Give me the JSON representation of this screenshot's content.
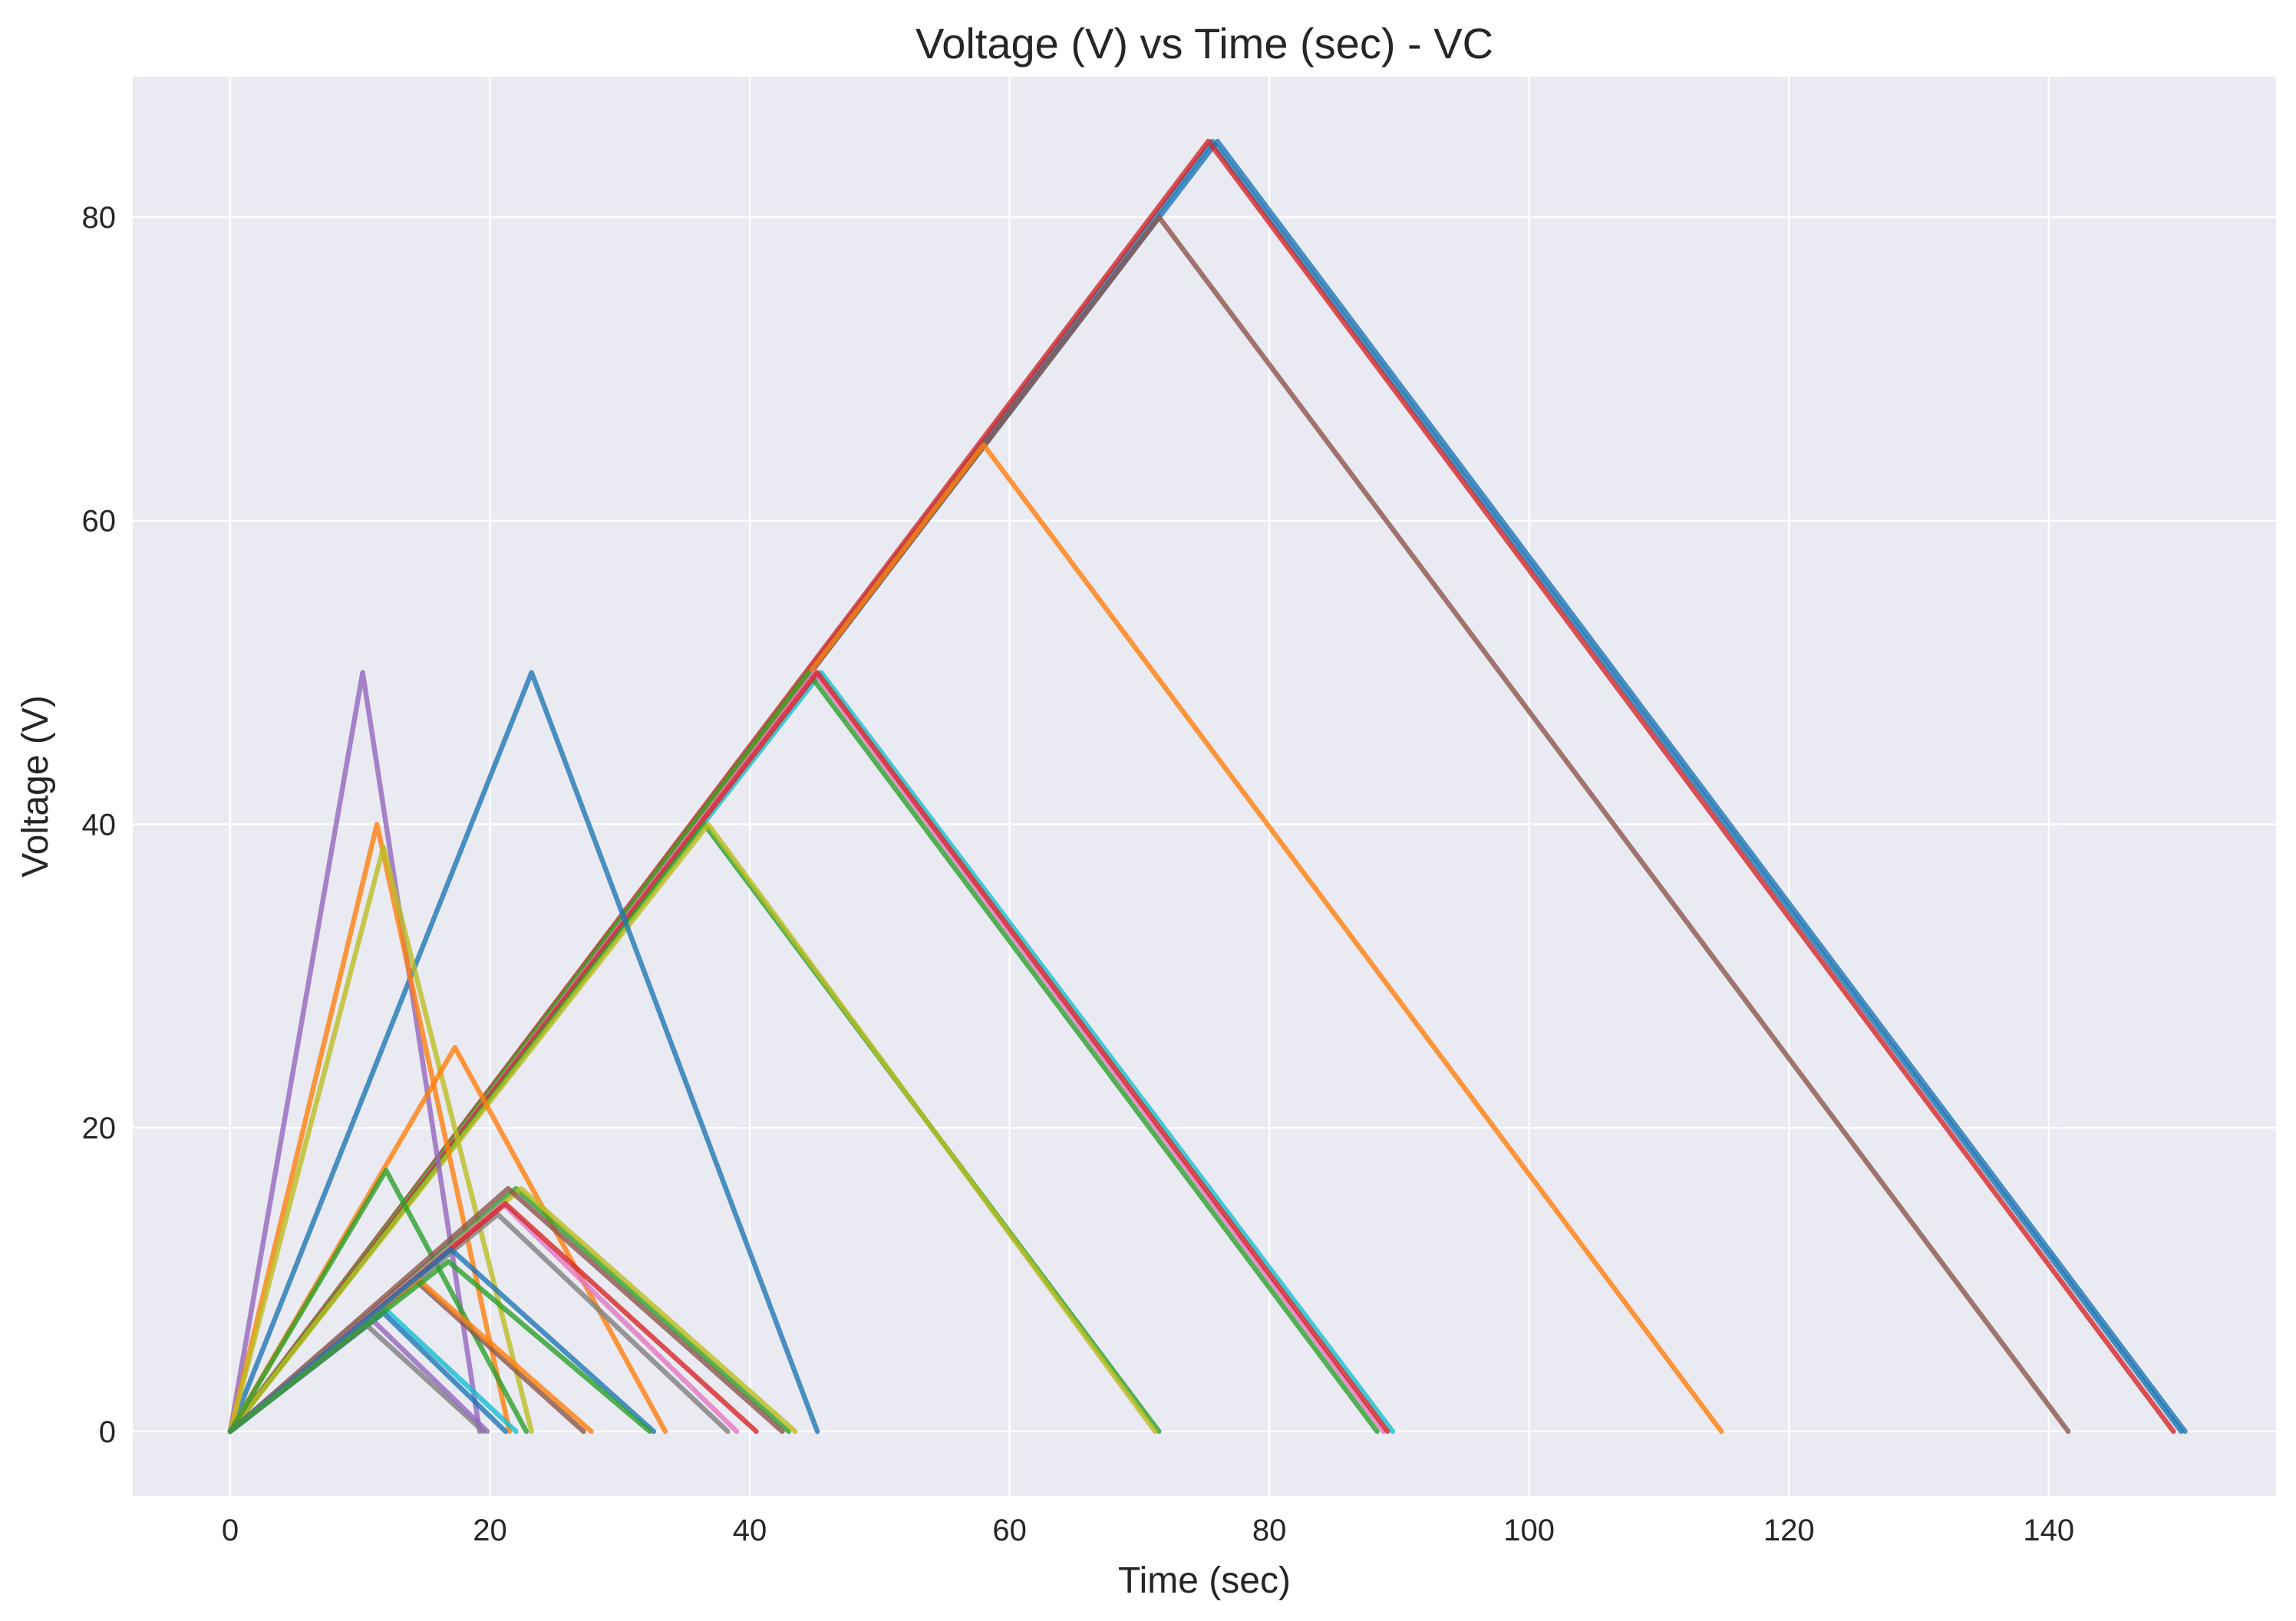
{
  "chart_data": {
    "type": "line",
    "title": "Voltage (V) vs Time (sec) - VC",
    "xlabel": "Time (sec)",
    "ylabel": "Voltage (V)",
    "xlim": [
      -7.5,
      157.5
    ],
    "ylim": [
      -4.25,
      89.25
    ],
    "xticks": [
      0,
      20,
      40,
      60,
      80,
      100,
      120,
      140
    ],
    "yticks": [
      0,
      20,
      40,
      60,
      80
    ],
    "grid": true,
    "background": "#eaeaf2",
    "series": [
      {
        "color": "#1f77b4",
        "x": [
          0,
          76,
          150.5
        ],
        "y": [
          0,
          85,
          0
        ]
      },
      {
        "color": "#1f77b4",
        "x": [
          0,
          75.6,
          150.2
        ],
        "y": [
          0,
          85,
          0
        ]
      },
      {
        "color": "#d62728",
        "x": [
          0,
          75.3,
          149.6
        ],
        "y": [
          0,
          85,
          0
        ]
      },
      {
        "color": "#8c564b",
        "x": [
          0,
          71.5,
          141.5
        ],
        "y": [
          0,
          80,
          0
        ]
      },
      {
        "color": "#ff7f0e",
        "x": [
          0,
          58,
          114.8
        ],
        "y": [
          0,
          65,
          0
        ]
      },
      {
        "color": "#17becf",
        "x": [
          0,
          45.5,
          89.5
        ],
        "y": [
          0,
          50,
          0
        ]
      },
      {
        "color": "#2ca02c",
        "x": [
          0,
          44.5,
          88.3
        ],
        "y": [
          0,
          50,
          0
        ]
      },
      {
        "color": "#e377c2",
        "x": [
          0,
          45,
          88.8
        ],
        "y": [
          0,
          50,
          0
        ]
      },
      {
        "color": "#d62728",
        "x": [
          0,
          45.2,
          89.1
        ],
        "y": [
          0,
          50,
          0
        ]
      },
      {
        "color": "#2ca02c",
        "x": [
          0,
          36.5,
          71.5
        ],
        "y": [
          0,
          40,
          0
        ]
      },
      {
        "color": "#bcbd22",
        "x": [
          0,
          36.8,
          71.2
        ],
        "y": [
          0,
          40,
          0
        ]
      },
      {
        "color": "#1f77b4",
        "x": [
          0,
          23.2,
          45.2
        ],
        "y": [
          0,
          50,
          0
        ]
      },
      {
        "color": "#9467bd",
        "x": [
          0,
          10.2,
          19.2
        ],
        "y": [
          0,
          50,
          0
        ]
      },
      {
        "color": "#ff7f0e",
        "x": [
          0,
          11.3,
          21.5
        ],
        "y": [
          0,
          40,
          0
        ]
      },
      {
        "color": "#bcbd22",
        "x": [
          0,
          11.8,
          23.2
        ],
        "y": [
          0,
          38.5,
          0
        ]
      },
      {
        "color": "#ff7f0e",
        "x": [
          0,
          17.3,
          33.5
        ],
        "y": [
          0,
          25.3,
          0
        ]
      },
      {
        "color": "#2ca02c",
        "x": [
          0,
          12,
          22.8
        ],
        "y": [
          0,
          17.2,
          0
        ]
      },
      {
        "color": "#2ca02c",
        "x": [
          0,
          22,
          43
        ],
        "y": [
          0,
          16,
          0
        ]
      },
      {
        "color": "#bcbd22",
        "x": [
          0,
          22.4,
          43.5
        ],
        "y": [
          0,
          16,
          0
        ]
      },
      {
        "color": "#8c564b",
        "x": [
          0,
          21.4,
          42.5
        ],
        "y": [
          0,
          16,
          0
        ]
      },
      {
        "color": "#e377c2",
        "x": [
          0,
          21,
          39
        ],
        "y": [
          0,
          15,
          0
        ]
      },
      {
        "color": "#7f7f7f",
        "x": [
          0,
          20.6,
          38.3
        ],
        "y": [
          0,
          14.3,
          0
        ]
      },
      {
        "color": "#d62728",
        "x": [
          0,
          21.2,
          40.5
        ],
        "y": [
          0,
          15,
          0
        ]
      },
      {
        "color": "#8c564b",
        "x": [
          0,
          14.2,
          27.2
        ],
        "y": [
          0,
          10,
          0
        ]
      },
      {
        "color": "#ff7f0e",
        "x": [
          0,
          14.5,
          27.8
        ],
        "y": [
          0,
          10,
          0
        ]
      },
      {
        "color": "#1f77b4",
        "x": [
          0,
          17,
          32.6
        ],
        "y": [
          0,
          12,
          0
        ]
      },
      {
        "color": "#17becf",
        "x": [
          0,
          12,
          22
        ],
        "y": [
          0,
          8,
          0
        ]
      },
      {
        "color": "#1f77b4",
        "x": [
          0,
          11.8,
          21.2
        ],
        "y": [
          0,
          7.8,
          0
        ]
      },
      {
        "color": "#7f7f7f",
        "x": [
          0,
          10.5,
          19.5
        ],
        "y": [
          0,
          7,
          0
        ]
      },
      {
        "color": "#9467bd",
        "x": [
          0,
          11,
          19.8
        ],
        "y": [
          0,
          7.3,
          0
        ]
      },
      {
        "color": "#2ca02c",
        "x": [
          0,
          16.8,
          32.3
        ],
        "y": [
          0,
          11.2,
          0
        ]
      }
    ]
  }
}
